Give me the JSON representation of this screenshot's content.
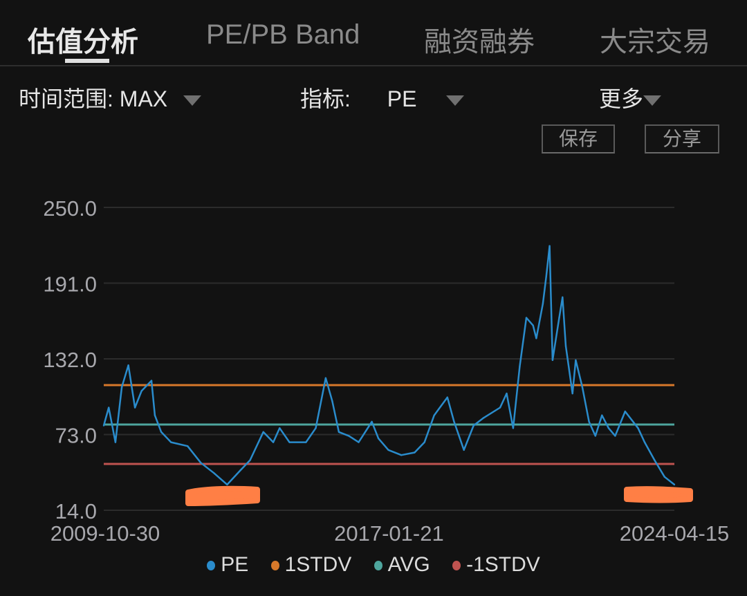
{
  "tabs": [
    {
      "label": "估值分析",
      "active": true
    },
    {
      "label": "PE/PB Band",
      "active": false
    },
    {
      "label": "融资融券",
      "active": false
    },
    {
      "label": "大宗交易",
      "active": false
    }
  ],
  "filters": {
    "time_range_label": "时间范围:",
    "time_range_value": "MAX",
    "indicator_label": "指标:",
    "indicator_value": "PE",
    "more_label": "更多"
  },
  "buttons": {
    "save": "保存",
    "share": "分享"
  },
  "icons": {
    "dropdown": "caret-down-icon"
  },
  "colors": {
    "background": "#121212",
    "PE": "#2a8ccc",
    "1STDV": "#d7782a",
    "AVG": "#4ea69e",
    "-1STDV": "#bf5350",
    "redaction": "#ff7f45"
  },
  "chart_data": {
    "type": "line",
    "ylim": [
      14.0,
      250.0
    ],
    "yticks": [
      "250.0",
      "191.0",
      "132.0",
      "73.0",
      "14.0"
    ],
    "xlim": [
      "2009-10-30",
      "2024-04-15"
    ],
    "xticks": [
      "2009-10-30",
      "2017-01-21",
      "2024-04-15"
    ],
    "grid": true,
    "legend_position": "bottom",
    "legend": [
      "PE",
      "1STDV",
      "AVG",
      "-1STDV"
    ],
    "reference_lines": [
      {
        "name": "1STDV",
        "value": 111.5
      },
      {
        "name": "AVG",
        "value": 80.8
      },
      {
        "name": "-1STDV",
        "value": 50.1
      }
    ],
    "series": [
      {
        "name": "PE",
        "x": [
          "2009-10-30",
          "2009-12-15",
          "2010-02-15",
          "2010-04-15",
          "2010-06-15",
          "2010-08-15",
          "2010-10-15",
          "2011-01-15",
          "2011-02-15",
          "2011-04-15",
          "2011-07-15",
          "2011-12-15",
          "2012-04-15",
          "2012-08-15",
          "2012-12-15",
          "2013-04-15",
          "2013-07-15",
          "2013-11-15",
          "2014-02-15",
          "2014-04-15",
          "2014-07-15",
          "2014-12-15",
          "2015-03-15",
          "2015-06-15",
          "2015-08-15",
          "2015-10-15",
          "2016-01-15",
          "2016-04-15",
          "2016-08-15",
          "2016-10-15",
          "2017-01-15",
          "2017-05-15",
          "2017-09-15",
          "2017-12-15",
          "2018-03-15",
          "2018-07-15",
          "2018-09-15",
          "2018-12-15",
          "2019-03-15",
          "2019-06-15",
          "2019-11-15",
          "2020-01-15",
          "2020-03-15",
          "2020-05-15",
          "2020-07-15",
          "2020-09-15",
          "2020-10-15",
          "2020-12-15",
          "2021-01-15",
          "2021-02-15",
          "2021-03-15",
          "2021-05-15",
          "2021-06-15",
          "2021-07-15",
          "2021-09-15",
          "2021-10-15",
          "2021-12-15",
          "2022-02-15",
          "2022-04-15",
          "2022-06-15",
          "2022-08-15",
          "2022-10-15",
          "2023-01-15",
          "2023-05-15",
          "2023-07-15",
          "2023-10-15",
          "2024-01-15",
          "2024-04-15"
        ],
        "values": [
          80,
          94,
          67,
          110,
          127,
          94,
          107,
          115,
          88,
          75,
          67,
          64,
          51,
          43,
          34,
          45,
          53,
          75,
          67,
          78,
          67,
          67,
          78,
          117,
          99,
          75,
          72,
          67,
          83,
          70,
          61,
          57,
          59,
          67,
          88,
          102,
          83,
          61,
          80,
          86,
          94,
          105,
          78,
          126,
          164,
          158,
          148,
          175,
          196,
          220,
          131,
          164,
          180,
          142,
          105,
          131,
          110,
          83,
          72,
          88,
          78,
          72,
          91,
          78,
          67,
          53,
          40,
          34
        ]
      }
    ]
  }
}
